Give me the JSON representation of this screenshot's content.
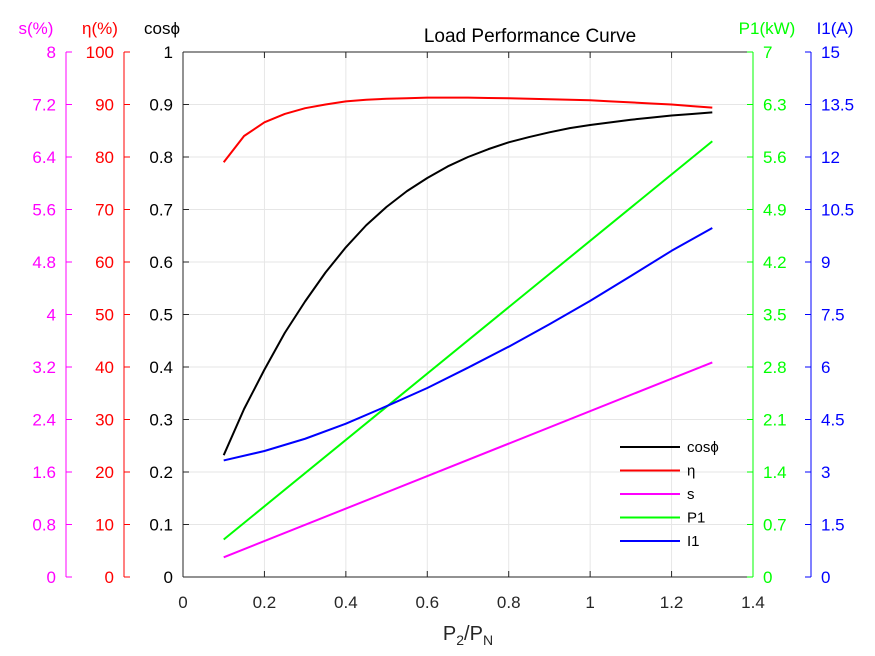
{
  "chart_data": {
    "type": "line",
    "title": "Load Performance Curve",
    "xlabel": {
      "base": "P",
      "sub1": "2",
      "slash": "/P",
      "sub2": "N"
    },
    "xlim": [
      0,
      1.4
    ],
    "xticks": [
      "0",
      "0.2",
      "0.4",
      "0.6",
      "0.8",
      "1",
      "1.2",
      "1.4"
    ],
    "axes": {
      "s": {
        "label": "s(%)",
        "color": "#ff00ff",
        "ylim": [
          0,
          8
        ],
        "ticks": [
          "0",
          "0.8",
          "1.6",
          "2.4",
          "3.2",
          "4",
          "4.8",
          "5.6",
          "6.4",
          "7.2",
          "8"
        ]
      },
      "eta": {
        "label": "η(%)",
        "color": "#ff0000",
        "ylim": [
          0,
          100
        ],
        "ticks": [
          "0",
          "10",
          "20",
          "30",
          "40",
          "50",
          "60",
          "70",
          "80",
          "90",
          "100"
        ]
      },
      "cos": {
        "label": "cosϕ",
        "color": "#000000",
        "ylim": [
          0,
          1
        ],
        "ticks": [
          "0",
          "0.1",
          "0.2",
          "0.3",
          "0.4",
          "0.5",
          "0.6",
          "0.7",
          "0.8",
          "0.9",
          "1"
        ]
      },
      "p1": {
        "label": "P1(kW)",
        "color": "#00ff00",
        "ylim": [
          0,
          7
        ],
        "ticks": [
          "0",
          "0.7",
          "1.4",
          "2.1",
          "2.8",
          "3.5",
          "4.2",
          "4.9",
          "5.6",
          "6.3",
          "7"
        ]
      },
      "i1": {
        "label": "I1(A)",
        "color": "#0000ff",
        "ylim": [
          0,
          15
        ],
        "ticks": [
          "0",
          "1.5",
          "3",
          "4.5",
          "6",
          "7.5",
          "9",
          "10.5",
          "12",
          "13.5",
          "15"
        ]
      }
    },
    "grid": true,
    "legend_position": "lower-right",
    "series": [
      {
        "name": "cosϕ",
        "axis": "cos",
        "color": "#000000",
        "x": [
          0.1,
          0.15,
          0.2,
          0.25,
          0.3,
          0.35,
          0.4,
          0.45,
          0.5,
          0.55,
          0.6,
          0.65,
          0.7,
          0.75,
          0.8,
          0.85,
          0.9,
          0.95,
          1.0,
          1.05,
          1.1,
          1.15,
          1.2,
          1.25,
          1.3
        ],
        "y": [
          0.232,
          0.32,
          0.395,
          0.465,
          0.525,
          0.58,
          0.628,
          0.67,
          0.705,
          0.735,
          0.76,
          0.782,
          0.8,
          0.815,
          0.828,
          0.838,
          0.847,
          0.855,
          0.861,
          0.866,
          0.871,
          0.875,
          0.879,
          0.882,
          0.885
        ]
      },
      {
        "name": "η",
        "axis": "eta",
        "color": "#ff0000",
        "x": [
          0.1,
          0.15,
          0.2,
          0.25,
          0.3,
          0.35,
          0.4,
          0.45,
          0.5,
          0.55,
          0.6,
          0.65,
          0.7,
          0.75,
          0.8,
          0.85,
          0.9,
          0.95,
          1.0,
          1.05,
          1.1,
          1.15,
          1.2,
          1.25,
          1.3
        ],
        "y": [
          79.0,
          84.0,
          86.6,
          88.2,
          89.3,
          90.0,
          90.6,
          90.9,
          91.1,
          91.2,
          91.3,
          91.3,
          91.3,
          91.25,
          91.2,
          91.1,
          91.0,
          90.9,
          90.8,
          90.6,
          90.4,
          90.2,
          90.0,
          89.7,
          89.4
        ]
      },
      {
        "name": "s",
        "axis": "s",
        "color": "#ff00ff",
        "x": [
          0.1,
          1.3
        ],
        "y": [
          0.3,
          3.27
        ]
      },
      {
        "name": "P1",
        "axis": "p1",
        "color": "#00ff00",
        "x": [
          0.1,
          1.3
        ],
        "y": [
          0.5,
          5.81
        ]
      },
      {
        "name": "I1",
        "axis": "i1",
        "color": "#0000ff",
        "x": [
          0.1,
          0.2,
          0.3,
          0.4,
          0.5,
          0.6,
          0.7,
          0.8,
          0.9,
          1.0,
          1.1,
          1.2,
          1.3
        ],
        "y": [
          3.33,
          3.6,
          3.95,
          4.38,
          4.88,
          5.4,
          5.98,
          6.58,
          7.22,
          7.89,
          8.6,
          9.32,
          9.97
        ]
      }
    ]
  }
}
